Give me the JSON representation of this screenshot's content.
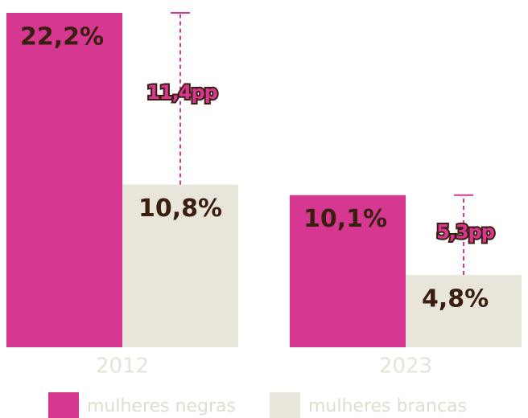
{
  "chart_data": {
    "type": "bar",
    "categories": [
      "2012",
      "2023"
    ],
    "series": [
      {
        "name": "mulheres negras",
        "color": "#d63891",
        "values": [
          22.2,
          10.1
        ],
        "value_labels": [
          "22,2%",
          "10,1%"
        ]
      },
      {
        "name": "mulheres brancas",
        "color": "#e8e6da",
        "values": [
          10.8,
          4.8
        ],
        "value_labels": [
          "10,8%",
          "4,8%"
        ]
      }
    ],
    "annotations": [
      {
        "label": "11,4pp",
        "value": 11.4
      },
      {
        "label": "5,3pp",
        "value": 5.3
      }
    ]
  }
}
